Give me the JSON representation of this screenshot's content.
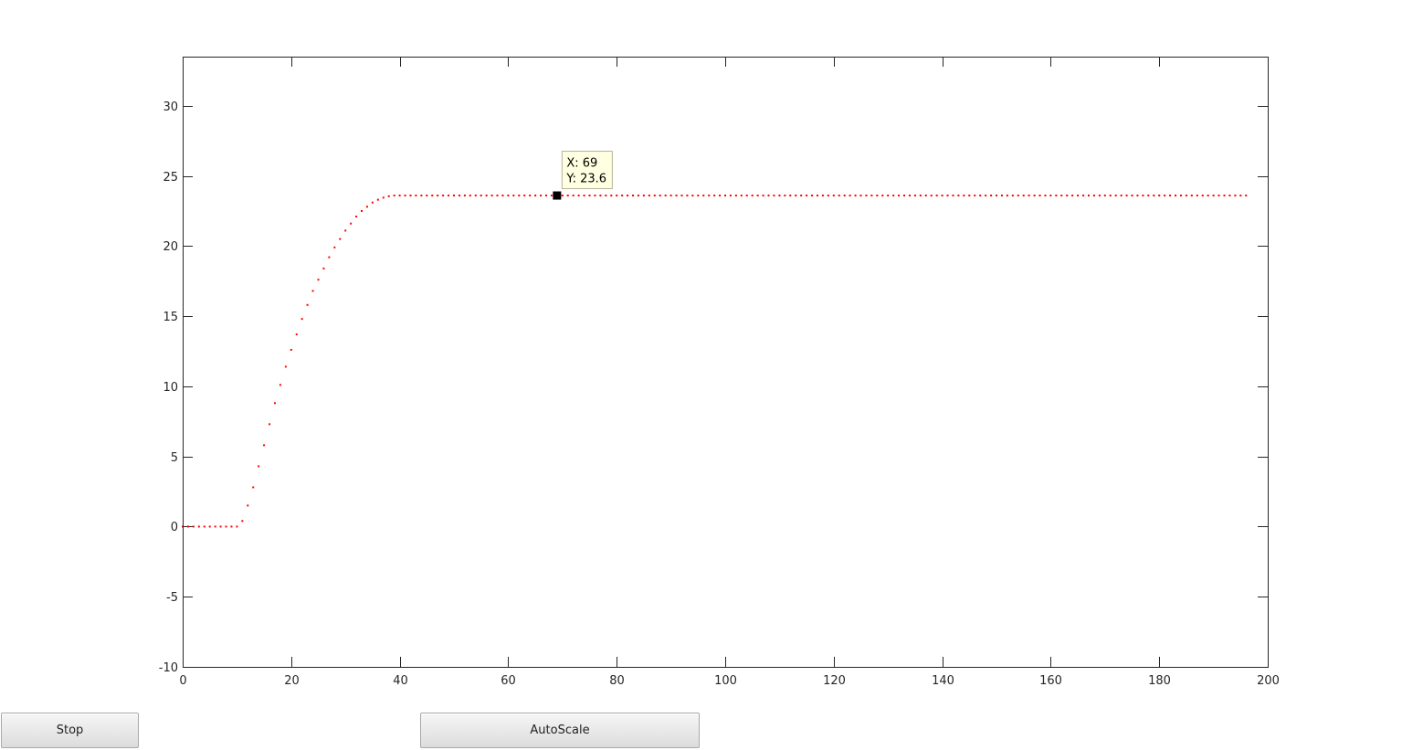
{
  "buttons": {
    "stop_label": "Stop",
    "autoscale_label": "AutoScale"
  },
  "datatip": {
    "x_text": "X: 69",
    "y_text": "Y: 23.6",
    "x": 69,
    "y": 23.6
  },
  "colors": {
    "series": "#ff0000",
    "axes": "#262626",
    "tip_bg": "#ffffe1",
    "tip_border": "#b4b496"
  },
  "chart_data": {
    "type": "scatter",
    "title": "",
    "xlabel": "",
    "ylabel": "",
    "xlim": [
      0,
      200
    ],
    "ylim": [
      -10,
      33.5
    ],
    "xticks": [
      0,
      20,
      40,
      60,
      80,
      100,
      120,
      140,
      160,
      180,
      200
    ],
    "yticks": [
      -10,
      -5,
      0,
      5,
      10,
      15,
      20,
      25,
      30
    ],
    "grid": false,
    "box": true,
    "series": [
      {
        "marker": "dot",
        "color": "#ff0000",
        "x_start": 0,
        "x_step": 1,
        "x_end": 196,
        "values": [
          0,
          0,
          0,
          0,
          0,
          0,
          0,
          0,
          0,
          0,
          0,
          0.4,
          1.5,
          2.8,
          4.3,
          5.8,
          7.3,
          8.8,
          10.1,
          11.4,
          12.6,
          13.7,
          14.8,
          15.8,
          16.8,
          17.6,
          18.4,
          19.2,
          19.9,
          20.5,
          21.1,
          21.6,
          22.1,
          22.5,
          22.8,
          23.1,
          23.3,
          23.45,
          23.55,
          23.6
        ]
      }
    ],
    "plateau_value": 23.6,
    "datatip_point": {
      "x": 69,
      "y": 23.6
    }
  }
}
